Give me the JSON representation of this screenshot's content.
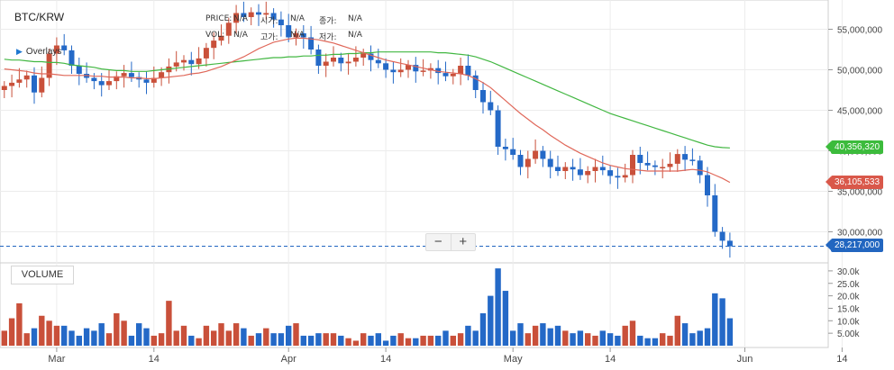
{
  "pair": "BTC/KRW",
  "overlays_label": "Overlays",
  "hover": {
    "price_label": "PRICE:",
    "price_value": "N/A",
    "vol_label": "VOL:",
    "vol_value": "N/A",
    "open_label": "시가:",
    "open_value": "N/A",
    "high_label": "고가:",
    "high_value": "N/A",
    "close_label": "종가:",
    "close_value": "N/A",
    "low_label": "저가:",
    "low_value": "N/A"
  },
  "volume_label": "VOLUME",
  "zoom": {
    "minus": "−",
    "plus": "+"
  },
  "badges": {
    "ma_long": {
      "text": "40,356,320",
      "color": "#3cbb3c"
    },
    "ma_short": {
      "text": "36,105,533",
      "color": "#d9584a"
    },
    "last": {
      "text": "28,217,000",
      "color": "#2266c0"
    }
  },
  "colors": {
    "up": "#c9503a",
    "down": "#2469c7",
    "ma_long": "#42b742",
    "ma_short": "#e0685a",
    "grid": "#ececec"
  },
  "chart_data": {
    "type": "candlestick",
    "x_ticks": [
      "Mar",
      "14",
      "Apr",
      "14",
      "May",
      "14",
      "Jun",
      "14"
    ],
    "x_tick_dates": [
      "2022-03-01",
      "2022-03-14",
      "2022-04-01",
      "2022-04-14",
      "2022-05-01",
      "2022-05-14",
      "2022-06-01",
      "2022-06-14"
    ],
    "price_ticks": [
      "55,000,000",
      "50,000,000",
      "45,000,000",
      "40,000,000",
      "35,000,000",
      "30,000,000"
    ],
    "price_tick_values": [
      55000000,
      50000000,
      45000000,
      40000000,
      35000000,
      30000000
    ],
    "volume_ticks": [
      "30.0k",
      "25.0k",
      "20.0k",
      "15.0k",
      "10.0k",
      "5.00k"
    ],
    "volume_tick_values": [
      30000,
      25000,
      20000,
      15000,
      10000,
      5000
    ],
    "last_price": 28217000,
    "ma_long_last": 40356320,
    "ma_short_last": 36105533,
    "start_date": "2022-02-22",
    "closes": [
      48.0,
      48.4,
      48.8,
      49.3,
      47.2,
      49.0,
      52.0,
      53.0,
      52.4,
      50.5,
      49.5,
      49.0,
      48.6,
      48.1,
      48.6,
      49.2,
      49.6,
      49.1,
      48.8,
      48.4,
      49.0,
      49.7,
      50.4,
      50.9,
      51.2,
      50.7,
      51.4,
      52.7,
      53.6,
      54.2,
      55.8,
      57.0,
      56.5,
      57.1,
      56.8,
      57.0,
      56.2,
      55.5,
      54.0,
      54.5,
      54.0,
      52.5,
      50.5,
      51.0,
      51.5,
      50.8,
      51.0,
      51.5,
      52.0,
      51.2,
      50.8,
      50.0,
      49.7,
      50.0,
      50.6,
      49.8,
      49.9,
      50.2,
      49.6,
      49.2,
      49.5,
      50.5,
      49.3,
      47.5,
      46.0,
      45.0,
      40.5,
      40.2,
      39.5,
      38.0,
      39.0,
      40.0,
      39.0,
      38.0,
      37.5,
      38.0,
      37.7,
      37.0,
      37.5,
      38.0,
      37.6,
      36.9,
      36.7,
      37.0,
      39.5,
      38.5,
      38.2,
      38.0,
      38.0,
      38.4,
      39.6,
      38.9,
      38.8,
      37.0,
      34.5,
      30.0,
      28.9,
      28.22
    ],
    "volumes": [
      6000,
      11000,
      17000,
      5000,
      7000,
      12000,
      10000,
      8000,
      8000,
      6000,
      4000,
      7000,
      6000,
      9000,
      5000,
      13000,
      10000,
      4000,
      9000,
      7000,
      4000,
      5000,
      18000,
      6000,
      8000,
      4000,
      3000,
      8000,
      6000,
      9000,
      6000,
      9000,
      7000,
      4000,
      5000,
      7000,
      5000,
      5000,
      8000,
      9000,
      4000,
      4000,
      5000,
      5000,
      5000,
      4000,
      3000,
      2000,
      5000,
      4000,
      5000,
      2000,
      4000,
      5000,
      3000,
      3000,
      4000,
      4000,
      4000,
      6000,
      4000,
      5000,
      8000,
      6000,
      13000,
      20000,
      31000,
      22000,
      6000,
      9000,
      5000,
      8000,
      9000,
      7000,
      8000,
      6000,
      5000,
      6000,
      5000,
      4000,
      6000,
      5000,
      4000,
      8000,
      10000,
      4000,
      3000,
      3000,
      5000,
      4000,
      12000,
      9000,
      5000,
      6000,
      7000,
      21000,
      19000,
      11000
    ],
    "opens_note": "open of each candle equals the previous close",
    "ma_long": [
      51.3,
      51.2,
      51.2,
      51.1,
      51.0,
      51.0,
      50.9,
      50.9,
      50.8,
      50.6,
      50.5,
      50.4,
      50.3,
      50.1,
      50.0,
      49.9,
      49.9,
      49.8,
      49.8,
      49.8,
      49.9,
      50.0,
      50.1,
      50.2,
      50.3,
      50.4,
      50.5,
      50.6,
      50.7,
      50.8,
      50.9,
      51.0,
      51.1,
      51.2,
      51.3,
      51.4,
      51.5,
      51.5,
      51.6,
      51.6,
      51.7,
      51.7,
      51.8,
      51.8,
      51.9,
      51.9,
      52.0,
      52.0,
      52.1,
      52.1,
      52.2,
      52.2,
      52.2,
      52.2,
      52.2,
      52.2,
      52.2,
      52.2,
      52.1,
      52.1,
      52.0,
      51.9,
      51.8,
      51.6,
      51.3,
      51.0,
      50.6,
      50.2,
      49.8,
      49.4,
      49.0,
      48.6,
      48.2,
      47.8,
      47.4,
      47.0,
      46.6,
      46.2,
      45.8,
      45.4,
      45.0,
      44.6,
      44.3,
      44.0,
      43.7,
      43.4,
      43.1,
      42.8,
      42.5,
      42.2,
      41.9,
      41.6,
      41.3,
      41.0,
      40.7,
      40.5,
      40.4,
      40.36
    ],
    "ma_short": [
      50.1,
      50.0,
      49.9,
      49.8,
      49.6,
      49.5,
      49.5,
      49.4,
      49.3,
      49.3,
      49.3,
      49.3,
      49.2,
      49.2,
      49.1,
      49.1,
      49.1,
      49.0,
      49.0,
      48.9,
      48.9,
      49.0,
      49.1,
      49.2,
      49.3,
      49.5,
      49.6,
      49.8,
      50.1,
      50.4,
      50.8,
      51.2,
      51.6,
      52.1,
      52.6,
      53.0,
      53.4,
      53.6,
      53.8,
      53.9,
      53.9,
      53.8,
      53.7,
      53.5,
      53.3,
      53.0,
      52.7,
      52.4,
      52.1,
      51.8,
      51.5,
      51.2,
      51.0,
      50.8,
      50.6,
      50.4,
      50.2,
      50.0,
      49.8,
      49.7,
      49.6,
      49.5,
      49.3,
      48.9,
      48.4,
      47.8,
      47.0,
      46.2,
      45.4,
      44.6,
      43.9,
      43.2,
      42.6,
      41.9,
      41.3,
      40.7,
      40.2,
      39.7,
      39.3,
      38.9,
      38.5,
      38.2,
      38.0,
      37.8,
      37.7,
      37.6,
      37.5,
      37.5,
      37.5,
      37.5,
      37.5,
      37.6,
      37.7,
      37.6,
      37.4,
      37.0,
      36.6,
      36.1
    ]
  }
}
